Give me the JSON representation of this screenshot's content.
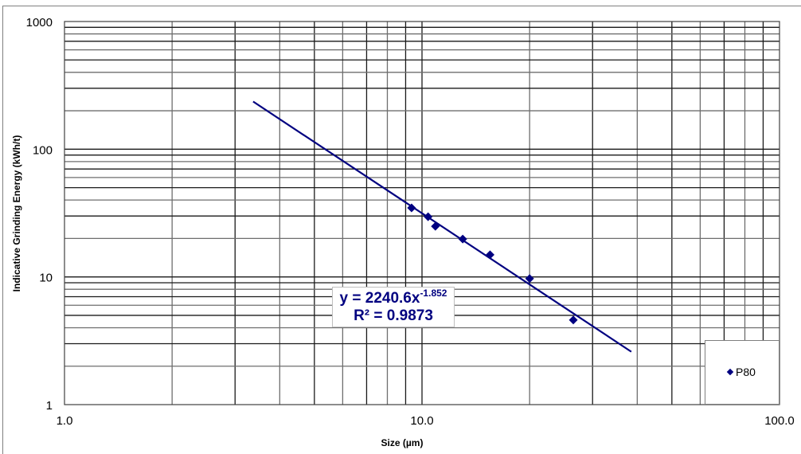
{
  "chart_data": {
    "type": "scatter",
    "title": "",
    "xlabel": "Size (µm)",
    "ylabel": "Indicative Grinding Energy (kWh/t)",
    "xscale": "log",
    "yscale": "log",
    "xlim": [
      1.0,
      100.0
    ],
    "ylim": [
      1,
      1000
    ],
    "x_tick_labels": [
      "1.0",
      "10.0",
      "100.0"
    ],
    "y_tick_labels": [
      "1",
      "10",
      "100",
      "1000"
    ],
    "grid": true,
    "legend_position": "bottom-right inside plot",
    "series": [
      {
        "name": "P80",
        "marker": "diamond",
        "color": "#000080",
        "x": [
          9.35,
          10.4,
          10.9,
          13.0,
          15.5,
          20.0,
          26.5
        ],
        "y": [
          34.7,
          29.6,
          24.9,
          19.8,
          14.9,
          9.7,
          4.6
        ]
      }
    ],
    "trendline": {
      "type": "power",
      "a": 2240.6,
      "b": -1.852,
      "r2": 0.9873,
      "x_range": [
        3.37,
        38.5
      ],
      "color": "#000080",
      "equation_label": "y = 2240.6x",
      "exponent_label": "-1.852",
      "r2_label": "R² = 0.9873"
    }
  },
  "legend": {
    "label": "P80"
  },
  "axes": {
    "xlabel": "Size (µm)",
    "ylabel": "Indicative Grinding Energy (kWh/t)"
  }
}
